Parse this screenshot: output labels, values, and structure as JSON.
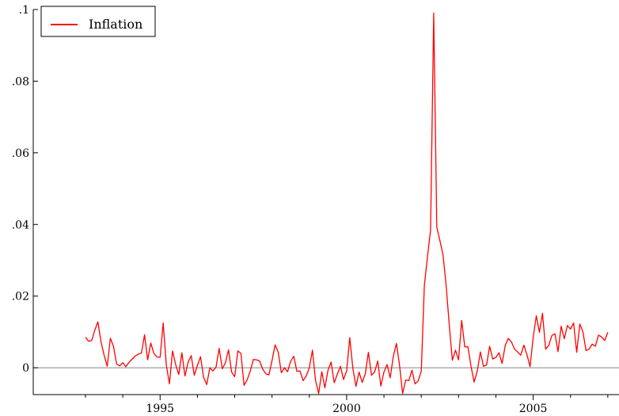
{
  "chart_data": {
    "type": "line",
    "title": "",
    "xlabel": "",
    "ylabel": "",
    "xlim": [
      1991.6,
      2007.3
    ],
    "ylim": [
      -0.0075,
      0.1
    ],
    "x_ticks": [
      {
        "value": 1995,
        "label": "1995"
      },
      {
        "value": 2000,
        "label": "2000"
      },
      {
        "value": 2005,
        "label": "2005"
      }
    ],
    "x_minor_ticks": [
      1993,
      1994,
      1996,
      1997,
      1998,
      1999,
      2001,
      2002,
      2003,
      2004,
      2006,
      2007
    ],
    "y_ticks": [
      {
        "value": 0,
        "label": "0"
      },
      {
        "value": 0.02,
        "label": ".02"
      },
      {
        "value": 0.04,
        "label": ".04"
      },
      {
        "value": 0.06,
        "label": ".06"
      },
      {
        "value": 0.08,
        "label": ".08"
      },
      {
        "value": 0.1,
        "label": ".1"
      }
    ],
    "zero_line": true,
    "grid": false,
    "legend": {
      "placement": "top-left"
    },
    "colors": {
      "series": "#ff0000",
      "axis": "#000000",
      "zero_line": "#888888"
    },
    "series": [
      {
        "name": "Inflation",
        "start": 1993.0,
        "step_months": 1,
        "values": [
          0.0085,
          0.0074,
          0.0076,
          0.0105,
          0.0128,
          0.0072,
          0.0035,
          0.0004,
          0.0082,
          0.006,
          0.0011,
          0.0005,
          0.0014,
          0.0003,
          0.0015,
          0.0024,
          0.0033,
          0.0038,
          0.0041,
          0.0092,
          0.0022,
          0.0069,
          0.004,
          0.003,
          0.0029,
          0.0125,
          0.0007,
          -0.0045,
          0.0047,
          0.0009,
          -0.0019,
          0.0042,
          -0.0023,
          0.0015,
          0.0034,
          -0.0021,
          0.0006,
          0.0031,
          -0.0027,
          -0.0047,
          0.0,
          -0.0009,
          0.0002,
          0.0054,
          -0.0003,
          0.0014,
          0.005,
          -0.0012,
          -0.0025,
          0.0047,
          0.004,
          -0.0049,
          -0.0034,
          -0.0009,
          0.0023,
          0.0022,
          0.0019,
          -0.0004,
          -0.0017,
          -0.002,
          0.002,
          0.0064,
          0.0043,
          -0.0014,
          0.0,
          -0.0011,
          0.0018,
          0.0032,
          -0.001,
          -0.0009,
          -0.0036,
          -0.0023,
          0.0,
          0.0049,
          -0.0036,
          -0.0072,
          -0.0011,
          -0.0056,
          -0.0007,
          0.0016,
          -0.0042,
          -0.0018,
          0.0004,
          -0.0033,
          -0.0009,
          0.0084,
          -0.0002,
          -0.0052,
          -0.0012,
          -0.0041,
          -0.0017,
          0.0043,
          -0.0021,
          -0.0012,
          0.0019,
          -0.0051,
          -0.0012,
          0.0009,
          -0.0028,
          0.0031,
          0.0068,
          0.0008,
          -0.0072,
          -0.0034,
          -0.0036,
          -0.0007,
          -0.0045,
          -0.0037,
          -0.001,
          0.023,
          0.031,
          0.0385,
          0.099,
          0.0392,
          0.0355,
          0.0315,
          0.023,
          0.012,
          0.0021,
          0.0049,
          0.0022,
          0.0132,
          0.0058,
          0.0059,
          0.0004,
          -0.004,
          -0.001,
          0.0044,
          0.0004,
          0.0008,
          0.006,
          0.0024,
          0.0029,
          0.0042,
          0.0012,
          0.0062,
          0.0082,
          0.0072,
          0.0052,
          0.0044,
          0.0035,
          0.0063,
          0.0036,
          0.0003,
          0.0085,
          0.0145,
          0.0099,
          0.0152,
          0.0052,
          0.0062,
          0.009,
          0.0095,
          0.0045,
          0.0116,
          0.0081,
          0.0118,
          0.0108,
          0.0125,
          0.0043,
          0.0122,
          0.01,
          0.0048,
          0.0052,
          0.0066,
          0.006,
          0.0091,
          0.0086,
          0.0076,
          0.0099
        ]
      }
    ]
  }
}
